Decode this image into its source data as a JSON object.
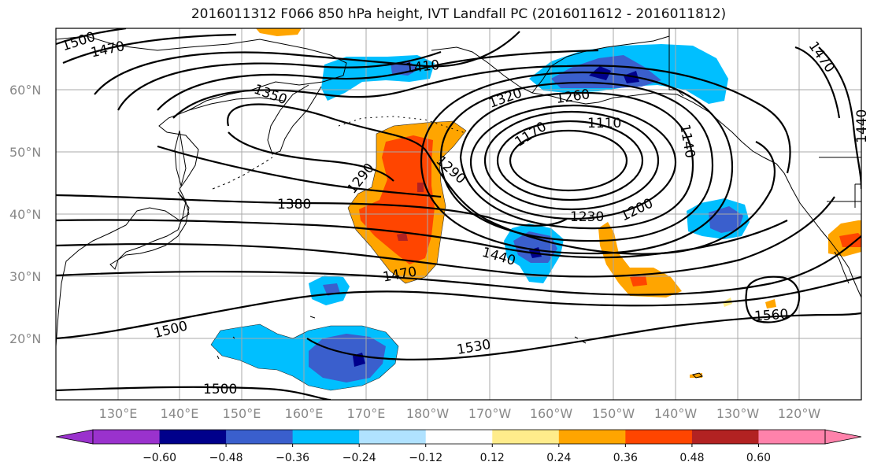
{
  "title": "2016011312 F066 850 hPa height, IVT Landfall PC (2016011612 - 2016011812)",
  "map": {
    "lon_labels": [
      "130°E",
      "140°E",
      "150°E",
      "160°E",
      "170°E",
      "180°W",
      "170°W",
      "160°W",
      "150°W",
      "140°W",
      "130°W",
      "120°W"
    ],
    "lat_labels": [
      "60°N",
      "50°N",
      "40°N",
      "30°N",
      "20°N"
    ],
    "contour_labels": [
      {
        "text": "1500",
        "id": "c1500a"
      },
      {
        "text": "1470",
        "id": "c1470a"
      },
      {
        "text": "1410",
        "id": "c1410"
      },
      {
        "text": "1350",
        "id": "c1350"
      },
      {
        "text": "1320",
        "id": "c1320"
      },
      {
        "text": "1260",
        "id": "c1260"
      },
      {
        "text": "1170",
        "id": "c1170"
      },
      {
        "text": "1110",
        "id": "c1110"
      },
      {
        "text": "1140",
        "id": "c1140"
      },
      {
        "text": "1470",
        "id": "c1470b"
      },
      {
        "text": "1440",
        "id": "c1440a"
      },
      {
        "text": "1290",
        "id": "c1290a"
      },
      {
        "text": "1290",
        "id": "c1290b"
      },
      {
        "text": "1380",
        "id": "c1380"
      },
      {
        "text": "1230",
        "id": "c1230"
      },
      {
        "text": "1200",
        "id": "c1200"
      },
      {
        "text": "1440",
        "id": "c1440b"
      },
      {
        "text": "1470",
        "id": "c1470c"
      },
      {
        "text": "1500",
        "id": "c1500b"
      },
      {
        "text": "1530",
        "id": "c1530"
      },
      {
        "text": "1560",
        "id": "c1560"
      },
      {
        "text": "1500",
        "id": "c1500c"
      }
    ]
  },
  "colorbar": {
    "colors": [
      "#9a32cd",
      "#00008b",
      "#3a5fcd",
      "#00bfff",
      "#b0e2ff",
      "#ffffff",
      "#ffec8b",
      "#ffa500",
      "#ff4500",
      "#b22222",
      "#ff82ab"
    ],
    "tick_labels": [
      "−0.60",
      "−0.48",
      "−0.36",
      "−0.24",
      "−0.12",
      "0.12",
      "0.24",
      "0.36",
      "0.48",
      "0.60"
    ]
  }
}
